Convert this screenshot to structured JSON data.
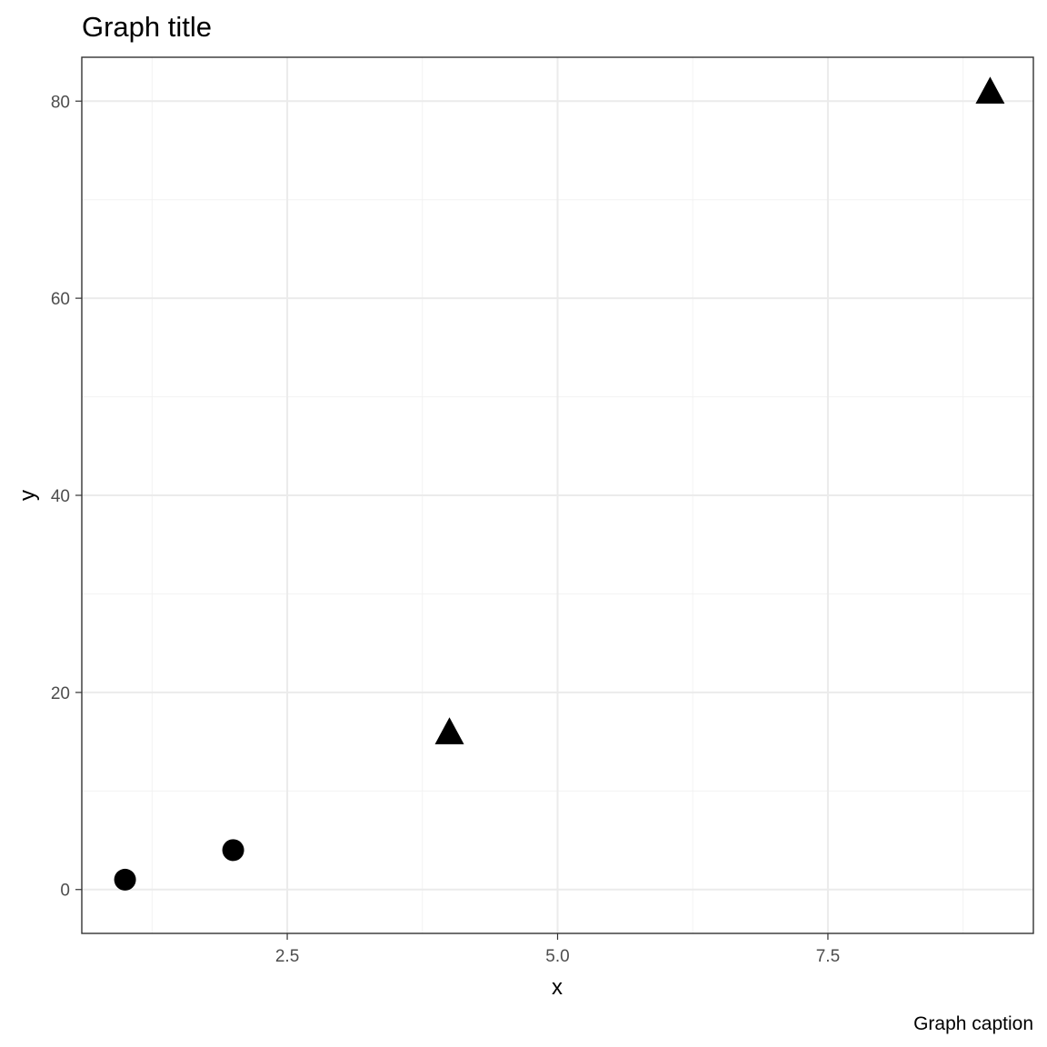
{
  "chart_data": {
    "type": "scatter",
    "title": "Graph title",
    "caption": "Graph caption",
    "xlabel": "x",
    "ylabel": "y",
    "xlim": [
      0.6,
      9.4
    ],
    "ylim": [
      -4.45,
      84.45
    ],
    "x_ticks": [
      2.5,
      5.0,
      7.5
    ],
    "x_tick_labels": [
      "2.5",
      "5.0",
      "7.5"
    ],
    "x_minor_ticks": [
      1.25,
      3.75,
      6.25,
      8.75
    ],
    "y_ticks": [
      0,
      20,
      40,
      60,
      80
    ],
    "y_tick_labels": [
      "0",
      "20",
      "40",
      "60",
      "80"
    ],
    "y_minor_ticks": [
      10,
      30,
      50,
      70
    ],
    "grid": true,
    "legend": "none",
    "point_color": "#000000",
    "points": [
      {
        "x": 1,
        "y": 1,
        "shape": "circle"
      },
      {
        "x": 2,
        "y": 4,
        "shape": "circle"
      },
      {
        "x": 4,
        "y": 16,
        "shape": "triangle"
      },
      {
        "x": 9,
        "y": 81,
        "shape": "triangle"
      }
    ]
  }
}
